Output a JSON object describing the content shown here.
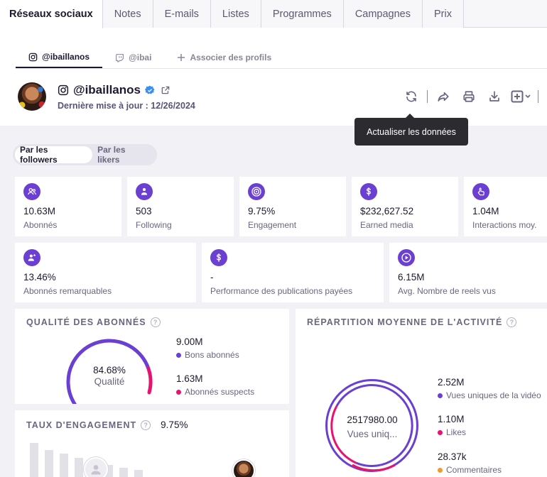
{
  "top_tabs": [
    "Réseaux sociaux",
    "Notes",
    "E-mails",
    "Listes",
    "Programmes",
    "Campagnes",
    "Prix"
  ],
  "profile_tabs": {
    "instagram": "@ibaillanos",
    "twitch": "@ibai",
    "associate": "Associer des profils"
  },
  "profile": {
    "handle": "@ibaillanos",
    "updated": "Dernière mise à jour : 12/26/2024"
  },
  "tooltip": "Actualiser les données",
  "toggle": {
    "followers": "Par les followers",
    "likers": "Par les likers"
  },
  "stats_row1": [
    {
      "icon": "users-icon",
      "value": "10.63M",
      "label": "Abonnés"
    },
    {
      "icon": "user-group-icon",
      "value": "503",
      "label": "Following"
    },
    {
      "icon": "target-icon",
      "value": "9.75%",
      "label": "Engagement"
    },
    {
      "icon": "dollar-icon",
      "value": "$232,627.52",
      "label": "Earned media"
    },
    {
      "icon": "tap-icon",
      "value": "1.04M",
      "label": "Interactions moy."
    }
  ],
  "stats_row2": [
    {
      "icon": "notable-users-icon",
      "value": "13.46%",
      "label": "Abonnés remarquables"
    },
    {
      "icon": "dollar-icon",
      "value": "-",
      "label": "Performance des publications payées"
    },
    {
      "icon": "play-icon",
      "value": "6.15M",
      "label": "Avg. Nombre de reels vus"
    }
  ],
  "quality": {
    "title": "QUALITÉ DES ABONNÉS",
    "percent": "84.68%",
    "percent_label": "Qualité",
    "fraction": 0.8468,
    "good_value": "9.00M",
    "good_label": "Bons abonnés",
    "suspect_value": "1.63M",
    "suspect_label": "Abonnés suspects"
  },
  "engagement": {
    "title": "TAUX D'ENGAGEMENT",
    "value": "9.75%"
  },
  "activity": {
    "title": "RÉPARTITION MOYENNE DE L'ACTIVITÉ",
    "center_value": "2517980.00",
    "center_label": "Vues uniq...",
    "items": [
      {
        "value": "2.52M",
        "label": "Vues uniques de la vidéo"
      },
      {
        "value": "1.10M",
        "label": "Likes"
      },
      {
        "value": "28.37k",
        "label": "Commentaires"
      }
    ]
  },
  "colors": {
    "accent": "#6a3fd1",
    "pink": "#e8136f",
    "orange": "#f39a2d",
    "background": "#f2f1f6"
  }
}
